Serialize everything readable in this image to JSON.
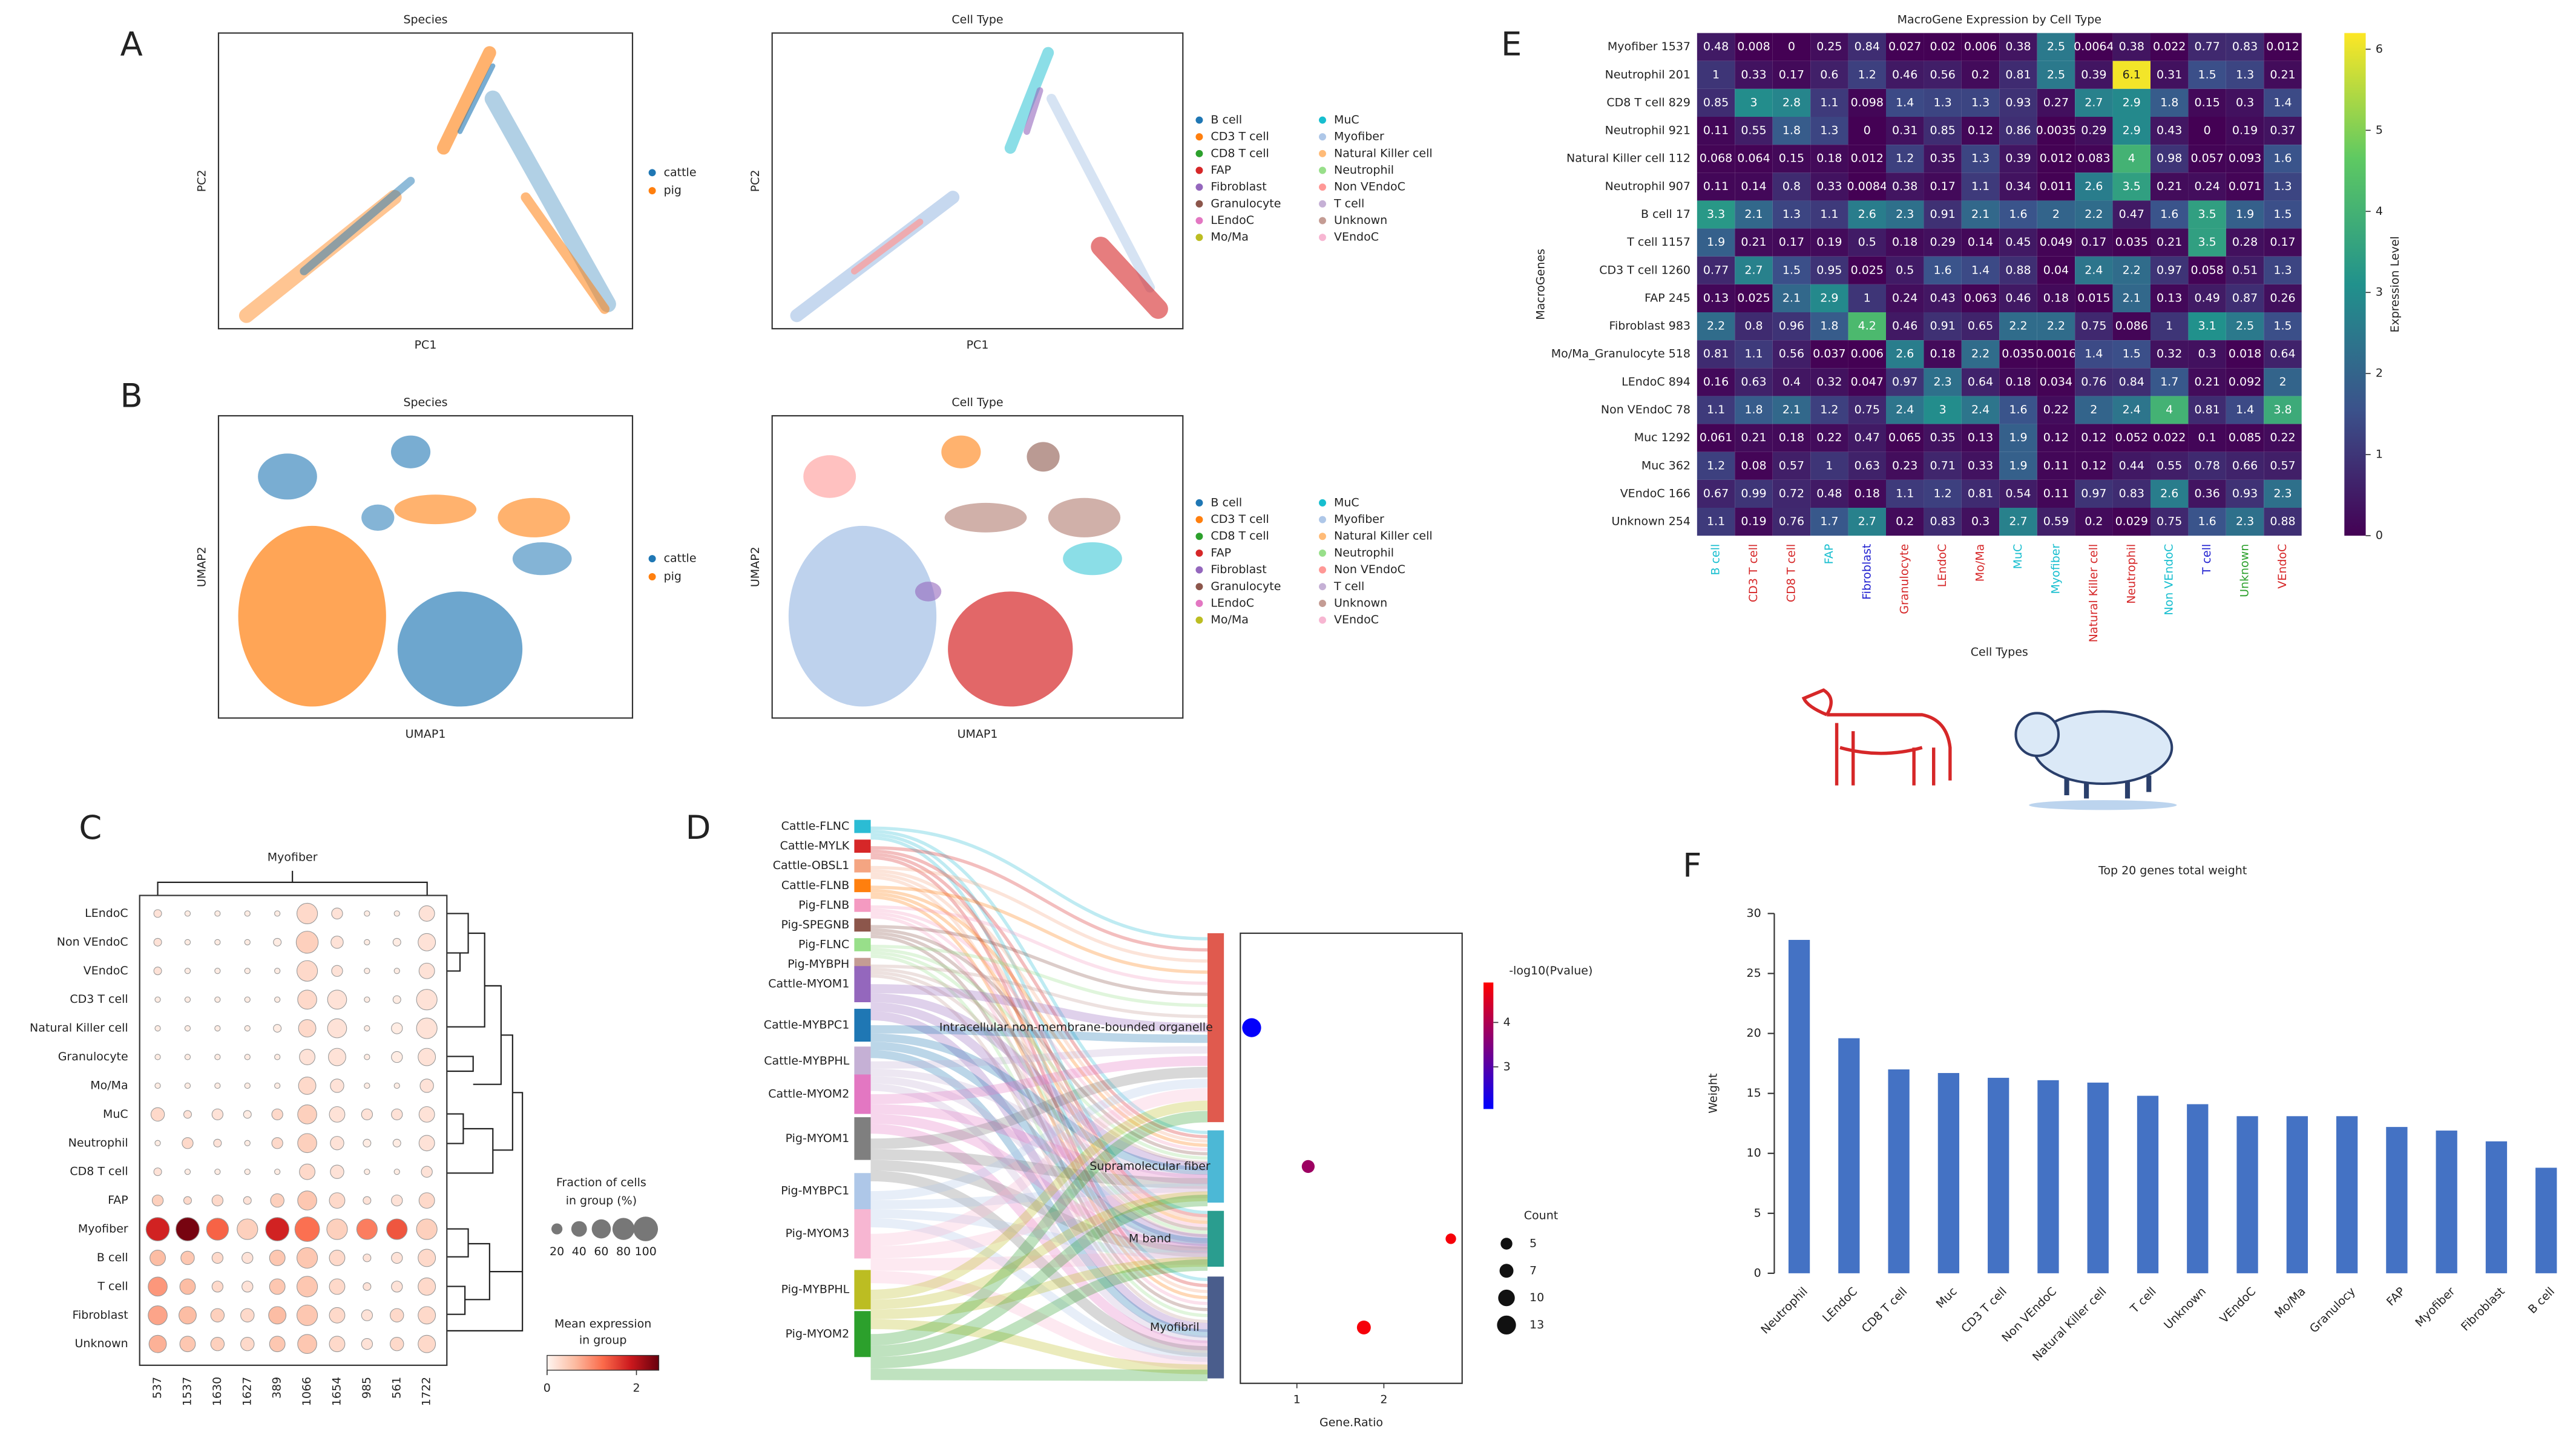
{
  "panel_labels": [
    "A",
    "B",
    "C",
    "D",
    "E",
    "F"
  ],
  "chart_data": [
    {
      "type": "scatter",
      "title": "Species",
      "xlabel": "PC1",
      "ylabel": "PC2",
      "series": [
        {
          "name": "cattle",
          "color": "#1f77b4"
        },
        {
          "name": "pig",
          "color": "#ff7f0e"
        }
      ]
    },
    {
      "type": "scatter",
      "title": "Cell Type",
      "xlabel": "PC1",
      "ylabel": "PC2",
      "series": [
        {
          "name": "B cell",
          "color": "#1f77b4"
        },
        {
          "name": "CD3 T cell",
          "color": "#ff7f0e"
        },
        {
          "name": "CD8 T cell",
          "color": "#2ca02c"
        },
        {
          "name": "FAP",
          "color": "#d62728"
        },
        {
          "name": "Fibroblast",
          "color": "#9467bd"
        },
        {
          "name": "Granulocyte",
          "color": "#8c564b"
        },
        {
          "name": "LEndoC",
          "color": "#e377c2"
        },
        {
          "name": "Mo/Ma",
          "color": "#bcbd22"
        },
        {
          "name": "MuC",
          "color": "#17becf"
        },
        {
          "name": "Myofiber",
          "color": "#aec7e8"
        },
        {
          "name": "Natural Killer cell",
          "color": "#ffbb78"
        },
        {
          "name": "Neutrophil",
          "color": "#98df8a"
        },
        {
          "name": "Non VEndoC",
          "color": "#ff9896"
        },
        {
          "name": "T cell",
          "color": "#c5b0d5"
        },
        {
          "name": "Unknown",
          "color": "#c49c94"
        },
        {
          "name": "VEndoC",
          "color": "#f7b6d2"
        }
      ]
    },
    {
      "type": "scatter",
      "title": "Species",
      "xlabel": "UMAP1",
      "ylabel": "UMAP2",
      "series": [
        {
          "name": "cattle",
          "color": "#1f77b4"
        },
        {
          "name": "pig",
          "color": "#ff7f0e"
        }
      ]
    },
    {
      "type": "scatter",
      "title": "Cell Type",
      "xlabel": "UMAP1",
      "ylabel": "UMAP2",
      "series": [
        {
          "name": "B cell",
          "color": "#1f77b4"
        },
        {
          "name": "CD3 T cell",
          "color": "#ff7f0e"
        },
        {
          "name": "CD8 T cell",
          "color": "#2ca02c"
        },
        {
          "name": "FAP",
          "color": "#d62728"
        },
        {
          "name": "Fibroblast",
          "color": "#9467bd"
        },
        {
          "name": "Granulocyte",
          "color": "#8c564b"
        },
        {
          "name": "LEndoC",
          "color": "#e377c2"
        },
        {
          "name": "Mo/Ma",
          "color": "#bcbd22"
        },
        {
          "name": "MuC",
          "color": "#17becf"
        },
        {
          "name": "Myofiber",
          "color": "#aec7e8"
        },
        {
          "name": "Natural Killer cell",
          "color": "#ffbb78"
        },
        {
          "name": "Neutrophil",
          "color": "#98df8a"
        },
        {
          "name": "Non VEndoC",
          "color": "#ff9896"
        },
        {
          "name": "T cell",
          "color": "#c5b0d5"
        },
        {
          "name": "Unknown",
          "color": "#c49c94"
        },
        {
          "name": "VEndoC",
          "color": "#f7b6d2"
        }
      ]
    },
    {
      "type": "dotplot",
      "title": "Myofiber",
      "rows": [
        "LEndoC",
        "Non VEndoC",
        "VEndoC",
        "CD3 T cell",
        "Natural Killer cell",
        "Granulocyte",
        "Mo/Ma",
        "MuC",
        "Neutrophil",
        "CD8 T cell",
        "FAP",
        "Myofiber",
        "B cell",
        "T cell",
        "Fibroblast",
        "Unknown"
      ],
      "categories": [
        "537",
        "1537",
        "1630",
        "1627",
        "389",
        "1066",
        "1654",
        "985",
        "561",
        "1722"
      ],
      "sizes": [
        [
          10,
          5,
          5,
          5,
          5,
          70,
          20,
          5,
          5,
          40
        ],
        [
          10,
          5,
          5,
          5,
          10,
          80,
          25,
          5,
          10,
          50
        ],
        [
          10,
          5,
          5,
          5,
          5,
          70,
          20,
          5,
          5,
          40
        ],
        [
          5,
          5,
          5,
          5,
          5,
          60,
          60,
          5,
          10,
          70
        ],
        [
          5,
          5,
          5,
          5,
          10,
          50,
          60,
          5,
          20,
          70
        ],
        [
          5,
          5,
          5,
          5,
          5,
          40,
          50,
          5,
          20,
          50
        ],
        [
          5,
          5,
          5,
          5,
          5,
          50,
          30,
          5,
          5,
          30
        ],
        [
          30,
          10,
          20,
          10,
          20,
          60,
          40,
          20,
          20,
          40
        ],
        [
          5,
          20,
          10,
          5,
          20,
          60,
          30,
          10,
          10,
          40
        ],
        [
          10,
          5,
          5,
          5,
          5,
          40,
          30,
          5,
          5,
          20
        ],
        [
          20,
          10,
          20,
          10,
          30,
          60,
          40,
          10,
          20,
          40
        ],
        [
          90,
          90,
          80,
          70,
          90,
          100,
          70,
          70,
          70,
          70
        ],
        [
          40,
          30,
          20,
          20,
          40,
          70,
          40,
          10,
          20,
          50
        ],
        [
          60,
          40,
          20,
          20,
          40,
          70,
          40,
          10,
          20,
          50
        ],
        [
          60,
          50,
          30,
          30,
          50,
          70,
          40,
          20,
          30,
          50
        ],
        [
          50,
          40,
          30,
          30,
          40,
          60,
          40,
          20,
          30,
          50
        ]
      ],
      "values": [
        [
          0.2,
          0.1,
          0.1,
          0.1,
          0.1,
          0.3,
          0.2,
          0.1,
          0.1,
          0.2
        ],
        [
          0.2,
          0.1,
          0.1,
          0.1,
          0.1,
          0.4,
          0.2,
          0.1,
          0.1,
          0.2
        ],
        [
          0.2,
          0.1,
          0.1,
          0.1,
          0.1,
          0.3,
          0.2,
          0.1,
          0.1,
          0.2
        ],
        [
          0.1,
          0.1,
          0.1,
          0.1,
          0.1,
          0.3,
          0.2,
          0.1,
          0.1,
          0.2
        ],
        [
          0.1,
          0.1,
          0.1,
          0.1,
          0.1,
          0.3,
          0.2,
          0.1,
          0.1,
          0.2
        ],
        [
          0.1,
          0.1,
          0.1,
          0.1,
          0.1,
          0.2,
          0.2,
          0.1,
          0.1,
          0.2
        ],
        [
          0.1,
          0.1,
          0.1,
          0.1,
          0.1,
          0.3,
          0.2,
          0.1,
          0.1,
          0.2
        ],
        [
          0.3,
          0.2,
          0.2,
          0.1,
          0.3,
          0.4,
          0.2,
          0.2,
          0.2,
          0.2
        ],
        [
          0.1,
          0.3,
          0.2,
          0.1,
          0.3,
          0.4,
          0.2,
          0.1,
          0.1,
          0.2
        ],
        [
          0.2,
          0.1,
          0.1,
          0.1,
          0.1,
          0.3,
          0.2,
          0.1,
          0.1,
          0.2
        ],
        [
          0.4,
          0.3,
          0.3,
          0.2,
          0.4,
          0.5,
          0.3,
          0.2,
          0.2,
          0.3
        ],
        [
          1.8,
          2.4,
          1.3,
          0.4,
          1.8,
          1.2,
          0.4,
          1.1,
          1.4,
          0.4
        ],
        [
          0.6,
          0.5,
          0.3,
          0.2,
          0.5,
          0.5,
          0.3,
          0.2,
          0.2,
          0.3
        ],
        [
          0.9,
          0.6,
          0.3,
          0.2,
          0.5,
          0.5,
          0.3,
          0.2,
          0.2,
          0.3
        ],
        [
          0.8,
          0.6,
          0.4,
          0.3,
          0.6,
          0.5,
          0.3,
          0.2,
          0.3,
          0.3
        ],
        [
          0.7,
          0.5,
          0.4,
          0.3,
          0.5,
          0.5,
          0.3,
          0.2,
          0.3,
          0.3
        ]
      ],
      "size_title": [
        "Fraction of cells",
        "in group (%)"
      ],
      "size_ticks": [
        20,
        40,
        60,
        80,
        100
      ],
      "color_title": [
        "Mean expression",
        "in group"
      ],
      "clim": [
        0,
        2.5
      ],
      "cticks": [
        0,
        2
      ]
    },
    {
      "type": "sankey",
      "left_nodes": [
        {
          "name": "Cattle-FLNC",
          "color": "#2bbcd4"
        },
        {
          "name": "Cattle-MYLK",
          "color": "#d62728"
        },
        {
          "name": "Cattle-OBSL1",
          "color": "#f4a582"
        },
        {
          "name": "Cattle-FLNB",
          "color": "#ff7f0e"
        },
        {
          "name": "Pig-FLNB",
          "color": "#f49ac1"
        },
        {
          "name": "Pig-SPEGNB",
          "color": "#8c564b"
        },
        {
          "name": "Pig-FLNC",
          "color": "#98df8a"
        },
        {
          "name": "Pig-MYBPH",
          "color": "#c49c94"
        },
        {
          "name": "Cattle-MYOM1",
          "color": "#9467bd"
        },
        {
          "name": "Cattle-MYBPC1",
          "color": "#1f77b4"
        },
        {
          "name": "Cattle-MYBPHL",
          "color": "#c5b0d5"
        },
        {
          "name": "Cattle-MYOM2",
          "color": "#e377c2"
        },
        {
          "name": "Pig-MYOM1",
          "color": "#7f7f7f"
        },
        {
          "name": "Pig-MYBPC1",
          "color": "#aec7e8"
        },
        {
          "name": "Pig-MYOM3",
          "color": "#f7b6d2"
        },
        {
          "name": "Pig-MYBPHL",
          "color": "#bcbd22"
        },
        {
          "name": "Pig-MYOM2",
          "color": "#2ca02c"
        }
      ],
      "right_nodes": [
        {
          "name": "Intracellular non-membrane-bounded organelle",
          "color": "#e05a4e"
        },
        {
          "name": "Supramolecular fiber",
          "color": "#4cb8d6"
        },
        {
          "name": "M band",
          "color": "#2a9d8f"
        },
        {
          "name": "Myofibril",
          "color": "#4a5d8c"
        }
      ],
      "x": [
        0.48,
        1.13,
        2.77,
        1.77
      ],
      "counts": [
        13,
        6,
        4,
        7
      ],
      "pvalues": [
        2.1,
        3.8,
        4.8,
        4.8
      ],
      "xlabel": "Gene.Ratio",
      "xlim": [
        0.35,
        2.9
      ],
      "xticks": [
        1,
        2
      ],
      "color_title": "-log10(Pvalue)",
      "clim": [
        2.05,
        4.9
      ],
      "cticks": [
        3,
        4
      ],
      "size_title": "Count",
      "size_ticks": [
        5,
        7,
        10,
        13
      ]
    },
    {
      "type": "heatmap",
      "title": "MacroGene Expression by Cell Type",
      "xlabel": "Cell Types",
      "ylabel": "MacroGenes",
      "categories": [
        "B cell",
        "CD3 T cell",
        "CD8 T cell",
        "FAP",
        "Fibroblast",
        "Granulocyte",
        "LEndoC",
        "Mo/Ma",
        "MuC",
        "Myofiber",
        "Natural Killer cell",
        "Neutrophil",
        "Non VEndoC",
        "T cell",
        "Unknown",
        "VEndoC"
      ],
      "category_colors": [
        "#17becf",
        "#d62728",
        "#d62728",
        "#17becf",
        "#1f1fd0",
        "#d62728",
        "#d62728",
        "#d62728",
        "#17becf",
        "#17becf",
        "#d62728",
        "#d62728",
        "#17becf",
        "#1f1fd0",
        "#2ca02c",
        "#d62728"
      ],
      "rows": [
        "Myofiber 1537",
        "Neutrophil 201",
        "CD8 T cell 829",
        "Neutrophil 921",
        "Natural Killer cell 112",
        "Neutrophil 907",
        "B cell 17",
        "T cell 1157",
        "CD3 T cell 1260",
        "FAP 245",
        "Fibroblast 983",
        "Mo/Ma_Granulocyte 518",
        "LEndoC 894",
        "Non VEndoC 78",
        "Muc 1292",
        "Muc 362",
        "VEndoC 166",
        "Unknown 254"
      ],
      "values": [
        [
          0.48,
          0.008,
          0,
          0.25,
          0.84,
          0.027,
          0.02,
          0.006,
          0.38,
          2.5,
          0.0064,
          0.38,
          0.022,
          0.77,
          0.83,
          0.012
        ],
        [
          1,
          0.33,
          0.17,
          0.6,
          1.2,
          0.46,
          0.56,
          0.2,
          0.81,
          2.5,
          0.39,
          6.1,
          0.31,
          1.5,
          1.3,
          0.21
        ],
        [
          0.85,
          3,
          2.8,
          1.1,
          0.098,
          1.4,
          1.3,
          1.3,
          0.93,
          0.27,
          2.7,
          2.9,
          1.8,
          0.15,
          0.3,
          1.4
        ],
        [
          0.11,
          0.55,
          1.8,
          1.3,
          0,
          0.31,
          0.85,
          0.12,
          0.86,
          0.0035,
          0.29,
          2.9,
          0.43,
          0,
          0.19,
          0.37
        ],
        [
          0.068,
          0.064,
          0.15,
          0.18,
          0.012,
          1.2,
          0.35,
          1.3,
          0.39,
          0.012,
          0.083,
          4,
          0.98,
          0.057,
          0.093,
          1.6
        ],
        [
          0.11,
          0.14,
          0.8,
          0.33,
          0.0084,
          0.38,
          0.17,
          1.1,
          0.34,
          0.011,
          2.6,
          3.5,
          0.21,
          0.24,
          0.071,
          1.3
        ],
        [
          3.3,
          2.1,
          1.3,
          1.1,
          2.6,
          2.3,
          0.91,
          2.1,
          1.6,
          2,
          2.2,
          0.47,
          1.6,
          3.5,
          1.9,
          1.5
        ],
        [
          1.9,
          0.21,
          0.17,
          0.19,
          0.5,
          0.18,
          0.29,
          0.14,
          0.45,
          0.049,
          0.17,
          0.035,
          0.21,
          3.5,
          0.28,
          0.17
        ],
        [
          0.77,
          2.7,
          1.5,
          0.95,
          0.025,
          0.5,
          1.6,
          1.4,
          0.88,
          0.04,
          2.4,
          2.2,
          0.97,
          0.058,
          0.51,
          1.3
        ],
        [
          0.13,
          0.025,
          2.1,
          2.9,
          1,
          0.24,
          0.43,
          0.063,
          0.46,
          0.18,
          0.015,
          2.1,
          0.13,
          0.49,
          0.87,
          0.26
        ],
        [
          2.2,
          0.8,
          0.96,
          1.8,
          4.2,
          0.46,
          0.91,
          0.65,
          2.2,
          2.2,
          0.75,
          0.086,
          1,
          3.1,
          2.5,
          1.5
        ],
        [
          0.81,
          1.1,
          0.56,
          0.037,
          0.006,
          2.6,
          0.18,
          2.2,
          0.035,
          0.0016,
          1.4,
          1.5,
          0.32,
          0.3,
          0.018,
          0.64
        ],
        [
          0.16,
          0.63,
          0.4,
          0.32,
          0.047,
          0.97,
          2.3,
          0.64,
          0.18,
          0.034,
          0.76,
          0.84,
          1.7,
          0.21,
          0.092,
          2
        ],
        [
          1.1,
          1.8,
          2.1,
          1.2,
          0.75,
          2.4,
          3,
          2.4,
          1.6,
          0.22,
          2,
          2.4,
          4,
          0.81,
          1.4,
          3.8
        ],
        [
          0.061,
          0.21,
          0.18,
          0.22,
          0.47,
          0.065,
          0.35,
          0.13,
          1.9,
          0.12,
          0.12,
          0.052,
          0.022,
          0.1,
          0.085,
          0.22
        ],
        [
          1.2,
          0.08,
          0.57,
          1,
          0.63,
          0.23,
          0.71,
          0.33,
          1.9,
          0.11,
          0.12,
          0.44,
          0.55,
          0.78,
          0.66,
          0.57
        ],
        [
          0.67,
          0.99,
          0.72,
          0.48,
          0.18,
          1.1,
          1.2,
          0.81,
          0.54,
          0.11,
          0.97,
          0.83,
          2.6,
          0.36,
          0.93,
          2.3
        ],
        [
          1.1,
          0.19,
          0.76,
          1.7,
          2.7,
          0.2,
          0.83,
          0.3,
          2.7,
          0.59,
          0.2,
          0.029,
          0.75,
          1.6,
          2.3,
          0.88
        ]
      ],
      "colorbar_label": "Expression Level",
      "clim": [
        0,
        6.2
      ],
      "cticks": [
        0,
        1,
        2,
        3,
        4,
        5,
        6
      ]
    },
    {
      "type": "bar",
      "title": "Top 20 genes total weight",
      "ylabel": "Weight",
      "color": "#4472c4",
      "categories": [
        "Neutrophil",
        "LEndoC",
        "CD8 T cell",
        "Muc",
        "CD3 T cell",
        "Non VEndoC",
        "Natural Killer cell",
        "T cell",
        "Unknown",
        "VEndoC",
        "Mo/Ma",
        "Granulocy",
        "FAP",
        "Myofiber",
        "Fibroblast",
        "B cell"
      ],
      "values": [
        27.8,
        19.6,
        17.0,
        16.7,
        16.3,
        16.1,
        15.9,
        14.8,
        14.1,
        13.1,
        13.1,
        13.1,
        12.2,
        11.9,
        11.0,
        8.8
      ],
      "ylim": [
        0,
        30
      ],
      "yticks": [
        0,
        5,
        10,
        15,
        20,
        25,
        30
      ]
    }
  ]
}
